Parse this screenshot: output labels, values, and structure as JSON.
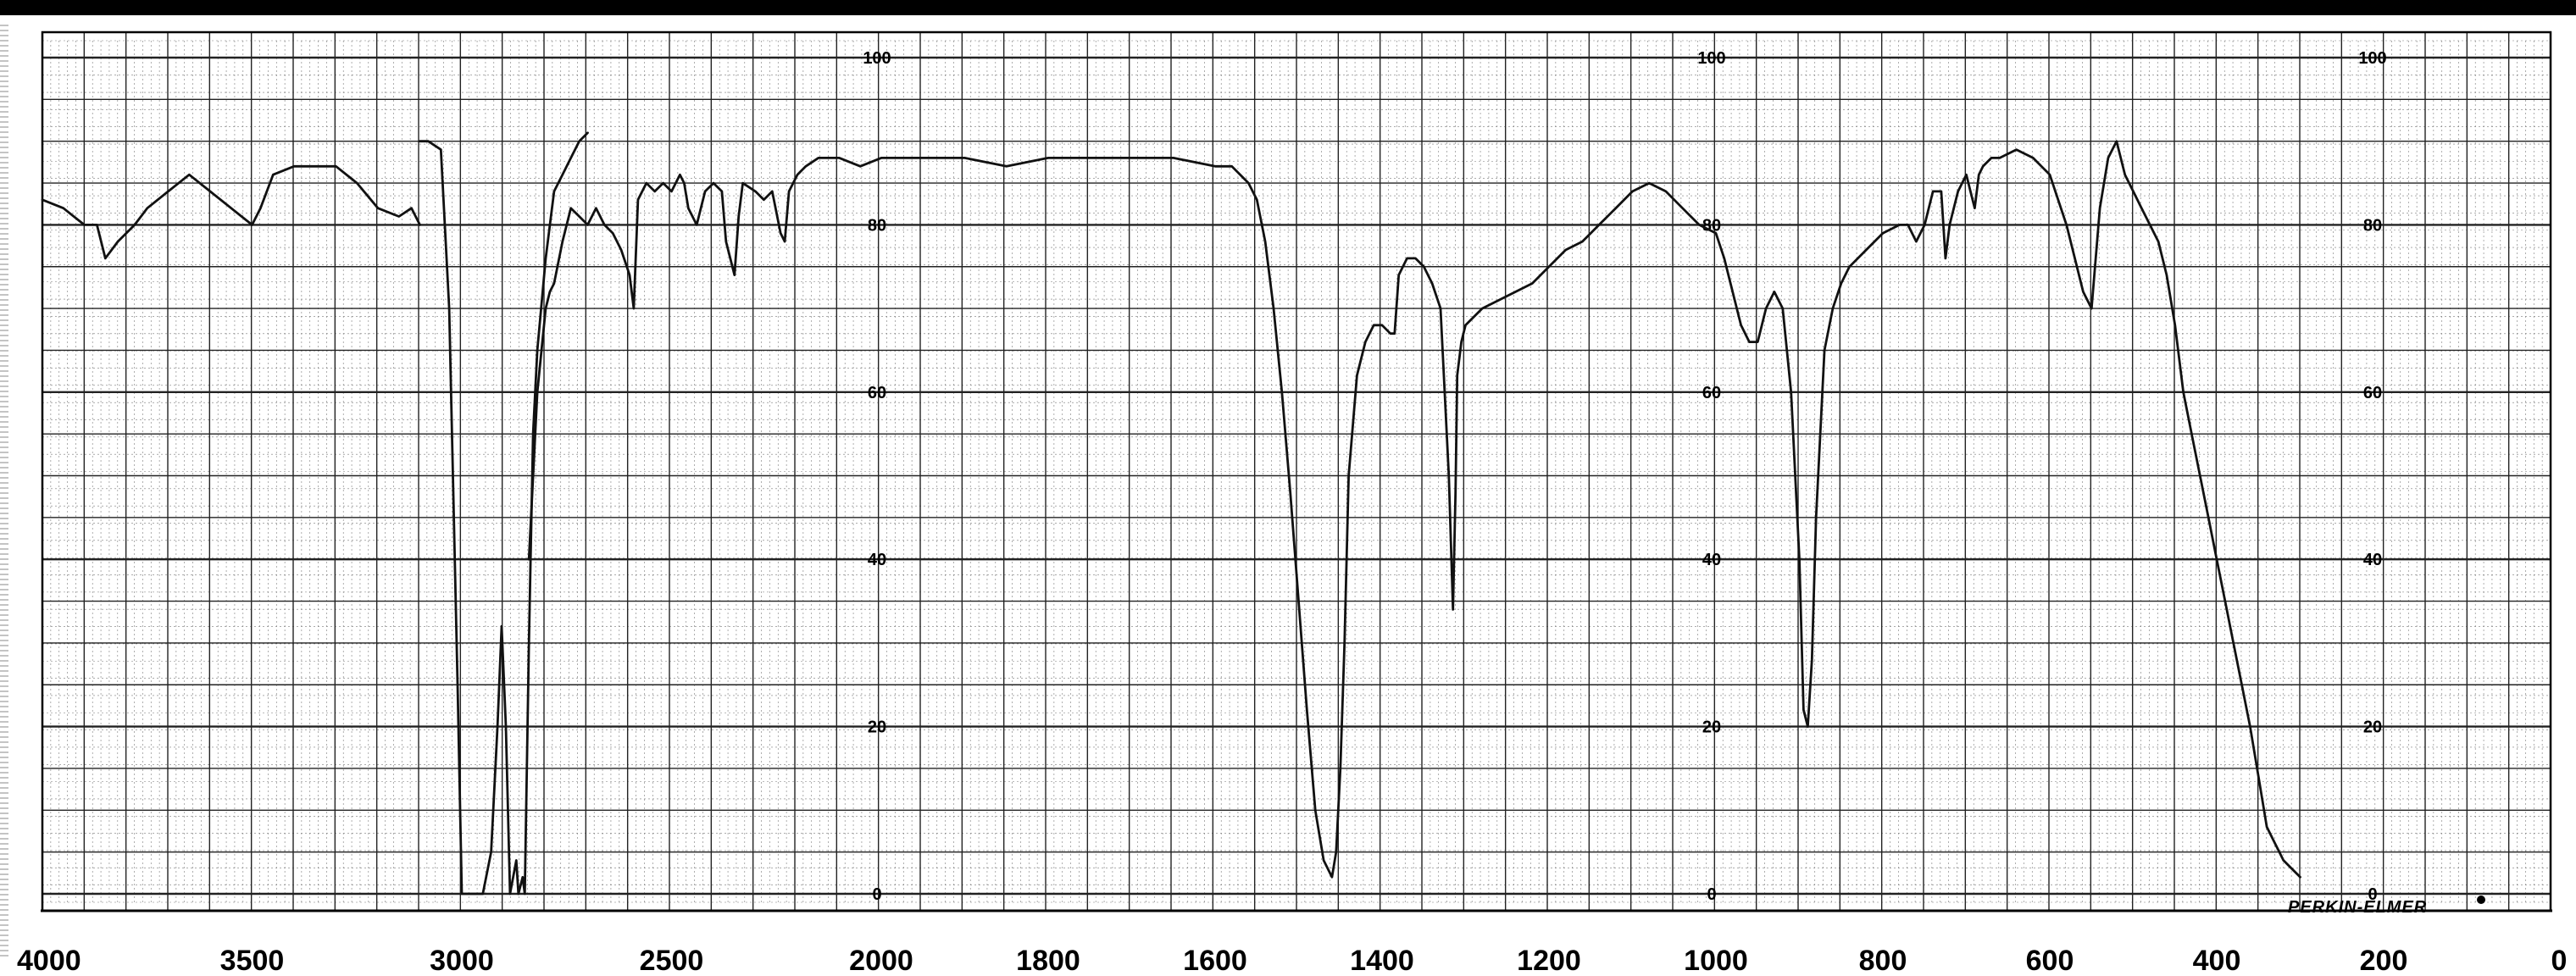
{
  "chart_data": {
    "type": "line",
    "title": "",
    "xlabel": "",
    "ylabel": "",
    "brand": "PERKIN-ELMER",
    "xlim": [
      4000,
      0
    ],
    "ylim": [
      0,
      100
    ],
    "x_ticks": [
      "4000",
      "3500",
      "3000",
      "2500",
      "2000",
      "1800",
      "1600",
      "1400",
      "1200",
      "1000",
      "800",
      "600",
      "400",
      "200",
      "0"
    ],
    "y_tick_labels": [
      "0",
      "20",
      "40",
      "60",
      "80",
      "100"
    ],
    "grid": true,
    "colors": {
      "line": "#111111",
      "grid": "#222222",
      "minor_grid": "#7a7a7a"
    },
    "series": [
      {
        "x": [
          4000,
          3950,
          3900,
          3870,
          3850,
          3820,
          3800,
          3780,
          3750,
          3700,
          3650,
          3600,
          3550,
          3500,
          3480,
          3450,
          3400,
          3350,
          3300,
          3250,
          3200,
          3150,
          3120,
          3100
        ],
        "y": [
          83,
          82,
          80,
          80,
          76,
          78,
          79,
          80,
          82,
          84,
          86,
          84,
          82,
          80,
          82,
          86,
          87,
          87,
          87,
          85,
          82,
          81,
          82,
          80
        ]
      },
      {
        "x": [
          3100,
          3080,
          3050,
          3030,
          3010,
          3000,
          2990,
          2970,
          2950,
          2930,
          2915,
          2905,
          2895,
          2885,
          2870,
          2865,
          2855,
          2850,
          2840,
          2830,
          2820,
          2800,
          2780,
          2760,
          2740,
          2720,
          2700
        ],
        "y": [
          90,
          90,
          89,
          70,
          25,
          0,
          0,
          0,
          0,
          5,
          20,
          32,
          20,
          0,
          4,
          0,
          2,
          0,
          30,
          55,
          65,
          76,
          84,
          86,
          88,
          90,
          91
        ]
      },
      {
        "x": [
          2840,
          2820,
          2800,
          2790,
          2780,
          2760,
          2740,
          2720,
          2700,
          2680,
          2660,
          2640,
          2620,
          2600,
          2590,
          2580,
          2560,
          2540,
          2520,
          2500,
          2480,
          2470,
          2460,
          2440,
          2420,
          2400,
          2380,
          2370,
          2350,
          2340,
          2330,
          2300,
          2280,
          2260,
          2240,
          2230,
          2220,
          2200,
          2180,
          2150,
          2100,
          2050,
          2000,
          1950,
          1900,
          1850,
          1800,
          1750,
          1700,
          1650,
          1600,
          1580,
          1560,
          1550,
          1540,
          1530,
          1520,
          1510,
          1500,
          1490,
          1480,
          1470,
          1460,
          1455,
          1450,
          1445,
          1440,
          1430,
          1420,
          1410,
          1400,
          1390,
          1385,
          1380,
          1370,
          1360,
          1350,
          1340,
          1330,
          1320,
          1315,
          1312,
          1310,
          1305,
          1300,
          1290,
          1280,
          1260,
          1240,
          1220,
          1200,
          1180,
          1160,
          1140,
          1120,
          1100,
          1080,
          1060,
          1040,
          1020,
          1000,
          990,
          980,
          970,
          960,
          950,
          940,
          930,
          920,
          910,
          900,
          895,
          890,
          885,
          880,
          870,
          860,
          850,
          840,
          820,
          800,
          780,
          770,
          760,
          750,
          740,
          730,
          725,
          720,
          710,
          700,
          695,
          690,
          685,
          680,
          670,
          660,
          640,
          620,
          600,
          580,
          560,
          550,
          545,
          540,
          530,
          520,
          510,
          500,
          490,
          480,
          470,
          460,
          450,
          440,
          430,
          420,
          410,
          400,
          390,
          380,
          370,
          360,
          350,
          340,
          330,
          320,
          310,
          300
        ],
        "y": [
          40,
          60,
          70,
          72,
          73,
          78,
          82,
          81,
          80,
          82,
          80,
          79,
          77,
          74,
          70,
          83,
          85,
          84,
          85,
          84,
          86,
          85,
          82,
          80,
          84,
          85,
          84,
          78,
          74,
          81,
          85,
          84,
          83,
          84,
          79,
          78,
          84,
          86,
          87,
          88,
          88,
          87,
          88,
          88,
          88,
          87,
          88,
          88,
          88,
          88,
          87,
          87,
          85,
          83,
          78,
          70,
          60,
          48,
          35,
          22,
          10,
          4,
          2,
          5,
          15,
          30,
          50,
          62,
          66,
          68,
          68,
          67,
          67,
          74,
          76,
          76,
          75,
          73,
          70,
          50,
          34,
          48,
          62,
          66,
          68,
          69,
          70,
          71,
          72,
          73,
          75,
          77,
          78,
          80,
          82,
          84,
          85,
          84,
          82,
          80,
          79,
          76,
          72,
          68,
          66,
          66,
          70,
          72,
          70,
          60,
          40,
          22,
          20,
          28,
          45,
          65,
          70,
          73,
          75,
          77,
          79,
          80,
          80,
          78,
          80,
          84,
          84,
          76,
          80,
          84,
          86,
          84,
          82,
          86,
          87,
          88,
          88,
          89,
          88,
          86,
          80,
          72,
          70,
          76,
          82,
          88,
          90,
          86,
          84,
          82,
          80,
          78,
          74,
          68,
          60,
          55,
          50,
          45,
          40,
          35,
          30,
          25,
          20,
          14,
          8,
          6,
          4,
          3,
          2
        ]
      }
    ]
  }
}
